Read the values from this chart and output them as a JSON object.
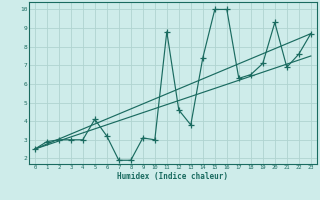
{
  "xlabel": "Humidex (Indice chaleur)",
  "bg_color": "#ceecea",
  "grid_color": "#b0d4d0",
  "line_color": "#1a6b60",
  "xlim": [
    -0.5,
    23.5
  ],
  "ylim": [
    1.7,
    10.4
  ],
  "xticks": [
    0,
    1,
    2,
    3,
    4,
    5,
    6,
    7,
    8,
    9,
    10,
    11,
    12,
    13,
    14,
    15,
    16,
    17,
    18,
    19,
    20,
    21,
    22,
    23
  ],
  "yticks": [
    2,
    3,
    4,
    5,
    6,
    7,
    8,
    9,
    10
  ],
  "zigzag_x": [
    0,
    1,
    2,
    3,
    4,
    5,
    6,
    7,
    8,
    9,
    10,
    11,
    12,
    13,
    14,
    15,
    16,
    17,
    18,
    19,
    20,
    21,
    22,
    23
  ],
  "zigzag_y": [
    2.5,
    2.9,
    3.0,
    3.0,
    3.0,
    4.1,
    3.2,
    1.9,
    1.9,
    3.1,
    3.0,
    8.8,
    4.6,
    3.8,
    7.4,
    10.0,
    10.0,
    6.3,
    6.5,
    7.1,
    9.3,
    6.9,
    7.6,
    8.7
  ],
  "trend1_x": [
    0,
    23
  ],
  "trend1_y": [
    2.5,
    8.7
  ],
  "trend2_x": [
    0,
    23
  ],
  "trend2_y": [
    2.5,
    7.5
  ]
}
